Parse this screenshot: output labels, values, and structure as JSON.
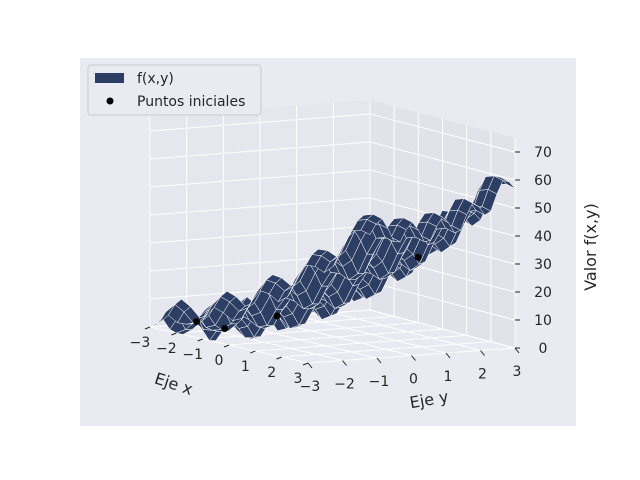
{
  "chart_data": {
    "type": "surface3d",
    "function_label": "f(x,y)",
    "xlabel": "Eje x",
    "ylabel": "Eje y",
    "zlabel": "Valor f(x,y)",
    "xlim": [
      -3,
      3
    ],
    "ylim": [
      -3,
      3
    ],
    "zlim": [
      0,
      75
    ],
    "x_ticks": [
      "−3",
      "−2",
      "−1",
      "0",
      "1",
      "2",
      "3"
    ],
    "y_ticks": [
      "−3",
      "−2",
      "−1",
      "0",
      "1",
      "2",
      "3"
    ],
    "z_ticks": [
      "0",
      "10",
      "20",
      "30",
      "40",
      "50",
      "60",
      "70"
    ],
    "grid": true,
    "legend_position": "top-left",
    "legend": [
      {
        "label": "f(x,y)",
        "color": "#2c3e63",
        "marker": "patch"
      },
      {
        "label": "Puntos iniciales",
        "color": "#000000",
        "marker": "dot"
      }
    ],
    "colors": {
      "figure_bg": "#eaeaf2",
      "surface": "#2c3e63",
      "points": "#000000",
      "pane_left": "#e6e6ee",
      "pane_right": "#e2e2ea",
      "pane_floor": "#e9e9f1"
    },
    "surface_grid": {
      "x_steps": 24,
      "y_steps": 24
    },
    "points": [
      {
        "x": -1.4,
        "y": -2.1,
        "z": 2.0
      },
      {
        "x": -2.2,
        "y": -2.3,
        "z": 3.0
      },
      {
        "x": -0.9,
        "y": -1.0,
        "z": 6.5
      },
      {
        "x": 0.6,
        "y": 1.9,
        "z": 28.0
      }
    ]
  }
}
